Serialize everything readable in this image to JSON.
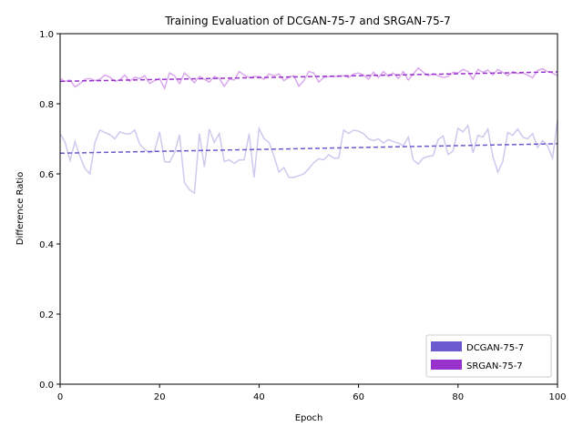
{
  "chart_data": {
    "type": "line",
    "title": "Training Evaluation of DCGAN-75-7 and SRGAN-75-7",
    "xlabel": "Epoch",
    "ylabel": "Difference Ratio",
    "xlim": [
      0,
      100
    ],
    "ylim": [
      0.0,
      1.0
    ],
    "xticks": [
      0,
      20,
      40,
      60,
      80,
      100
    ],
    "xtick_labels": [
      "0",
      "20",
      "40",
      "60",
      "80",
      "100"
    ],
    "yticks": [
      0.0,
      0.2,
      0.4,
      0.6,
      0.8,
      1.0
    ],
    "ytick_labels": [
      "0.0",
      "0.2",
      "0.4",
      "0.6",
      "0.8",
      "1.0"
    ],
    "grid": false,
    "legend_position": "lower-right",
    "x": [
      0,
      1,
      2,
      3,
      4,
      5,
      6,
      7,
      8,
      9,
      10,
      11,
      12,
      13,
      14,
      15,
      16,
      17,
      18,
      19,
      20,
      21,
      22,
      23,
      24,
      25,
      26,
      27,
      28,
      29,
      30,
      31,
      32,
      33,
      34,
      35,
      36,
      37,
      38,
      39,
      40,
      41,
      42,
      43,
      44,
      45,
      46,
      47,
      48,
      49,
      50,
      51,
      52,
      53,
      54,
      55,
      56,
      57,
      58,
      59,
      60,
      61,
      62,
      63,
      64,
      65,
      66,
      67,
      68,
      69,
      70,
      71,
      72,
      73,
      74,
      75,
      76,
      77,
      78,
      79,
      80,
      81,
      82,
      83,
      84,
      85,
      86,
      87,
      88,
      89,
      90,
      91,
      92,
      93,
      94,
      95,
      96,
      97,
      98,
      99,
      100
    ],
    "series": [
      {
        "name": "DCGAN-75-7",
        "color": "#6a5acd",
        "raw_color": "#cfc9ee",
        "values": [
          0.715,
          0.69,
          0.638,
          0.692,
          0.65,
          0.615,
          0.6,
          0.69,
          0.725,
          0.718,
          0.712,
          0.7,
          0.72,
          0.715,
          0.714,
          0.725,
          0.685,
          0.67,
          0.66,
          0.665,
          0.72,
          0.635,
          0.633,
          0.66,
          0.712,
          0.575,
          0.555,
          0.545,
          0.715,
          0.62,
          0.728,
          0.69,
          0.715,
          0.635,
          0.64,
          0.63,
          0.64,
          0.64,
          0.715,
          0.59,
          0.73,
          0.7,
          0.69,
          0.65,
          0.605,
          0.618,
          0.59,
          0.59,
          0.595,
          0.6,
          0.615,
          0.632,
          0.643,
          0.64,
          0.655,
          0.645,
          0.645,
          0.725,
          0.715,
          0.725,
          0.722,
          0.715,
          0.7,
          0.695,
          0.7,
          0.688,
          0.698,
          0.692,
          0.688,
          0.68,
          0.705,
          0.64,
          0.628,
          0.645,
          0.65,
          0.652,
          0.698,
          0.708,
          0.655,
          0.665,
          0.73,
          0.72,
          0.738,
          0.66,
          0.71,
          0.705,
          0.728,
          0.65,
          0.605,
          0.635,
          0.718,
          0.71,
          0.728,
          0.705,
          0.7,
          0.715,
          0.675,
          0.695,
          0.68,
          0.645,
          0.752
        ],
        "trend": [
          0.659,
          0.686
        ]
      },
      {
        "name": "SRGAN-75-7",
        "color": "#9932cc",
        "raw_color": "#dba8ee",
        "values": [
          0.872,
          0.864,
          0.868,
          0.848,
          0.858,
          0.87,
          0.872,
          0.866,
          0.87,
          0.882,
          0.876,
          0.864,
          0.868,
          0.882,
          0.864,
          0.876,
          0.872,
          0.88,
          0.858,
          0.866,
          0.872,
          0.844,
          0.888,
          0.88,
          0.858,
          0.888,
          0.875,
          0.86,
          0.878,
          0.87,
          0.862,
          0.878,
          0.872,
          0.85,
          0.87,
          0.868,
          0.892,
          0.882,
          0.875,
          0.878,
          0.878,
          0.87,
          0.885,
          0.88,
          0.885,
          0.866,
          0.876,
          0.88,
          0.85,
          0.866,
          0.892,
          0.888,
          0.862,
          0.875,
          0.878,
          0.878,
          0.878,
          0.88,
          0.875,
          0.885,
          0.888,
          0.882,
          0.87,
          0.89,
          0.875,
          0.892,
          0.878,
          0.888,
          0.872,
          0.892,
          0.868,
          0.885,
          0.902,
          0.89,
          0.88,
          0.886,
          0.88,
          0.875,
          0.878,
          0.89,
          0.888,
          0.898,
          0.892,
          0.87,
          0.898,
          0.89,
          0.896,
          0.882,
          0.898,
          0.89,
          0.88,
          0.892,
          0.886,
          0.888,
          0.882,
          0.874,
          0.895,
          0.9,
          0.892,
          0.888,
          0.88
        ],
        "trend": [
          0.864,
          0.891
        ]
      }
    ]
  }
}
